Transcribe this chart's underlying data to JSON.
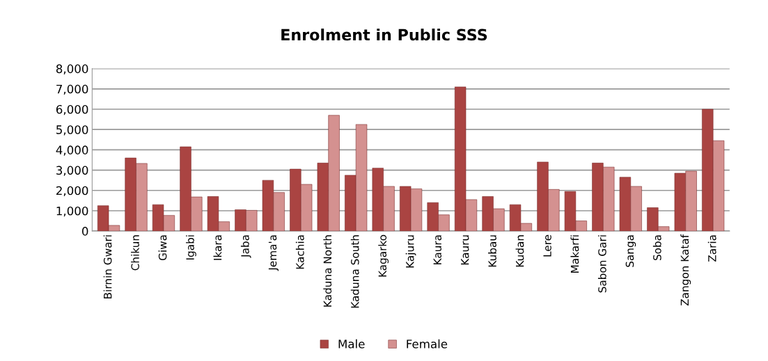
{
  "chart_data": {
    "type": "bar",
    "title": "Enrolment in Public SSS",
    "categories": [
      "Birnin Gwari",
      "Chikun",
      "Giwa",
      "Igabi",
      "Ikara",
      "Jaba",
      "Jema'a",
      "Kachia",
      "Kaduna North",
      "Kaduna South",
      "Kagarko",
      "Kajuru",
      "Kaura",
      "Kauru",
      "Kubau",
      "Kudan",
      "Lere",
      "Makarfi",
      "Sabon Gari",
      "Sanga",
      "Soba",
      "Zangon Kataf",
      "Zaria"
    ],
    "series": [
      {
        "name": "Male",
        "color": "#aa4442",
        "values": [
          1250,
          3600,
          1300,
          4150,
          1700,
          1050,
          2500,
          3050,
          3350,
          2750,
          3100,
          2200,
          1400,
          7100,
          1700,
          1300,
          3400,
          1950,
          3350,
          2650,
          1150,
          2850,
          6000
        ]
      },
      {
        "name": "Female",
        "color": "#d49190",
        "values": [
          280,
          3330,
          770,
          1680,
          460,
          1020,
          1900,
          2300,
          5700,
          5250,
          2200,
          2080,
          800,
          1550,
          1100,
          380,
          2050,
          500,
          3150,
          2200,
          220,
          2950,
          4450
        ]
      }
    ],
    "ylim": [
      0,
      8000
    ],
    "yticks": [
      {
        "value": 0,
        "label": "0"
      },
      {
        "value": 1000,
        "label": "1,000"
      },
      {
        "value": 2000,
        "label": "2,000"
      },
      {
        "value": 3000,
        "label": "3,000"
      },
      {
        "value": 4000,
        "label": "4,000"
      },
      {
        "value": 5000,
        "label": "5,000"
      },
      {
        "value": 6000,
        "label": "6,000"
      },
      {
        "value": 7000,
        "label": "7,000"
      },
      {
        "value": 8000,
        "label": "8,000"
      }
    ],
    "grid": "y",
    "legend": "bottom"
  }
}
